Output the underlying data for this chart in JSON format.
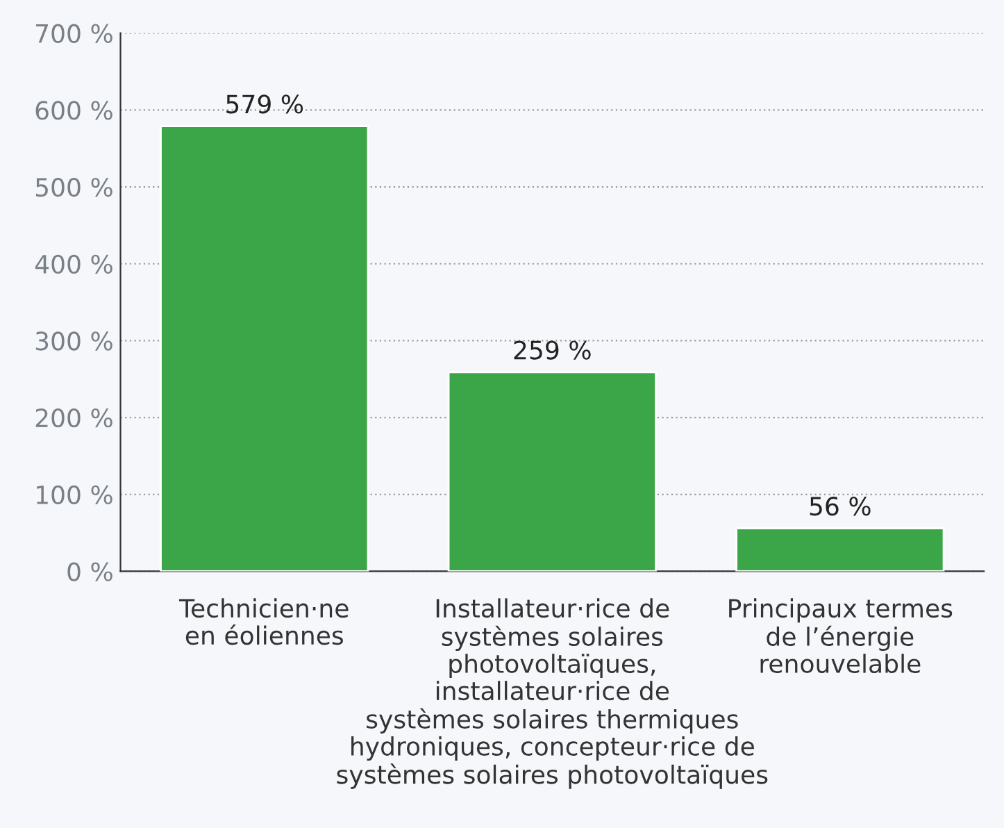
{
  "chart_data": {
    "type": "bar",
    "categories": [
      "Technicien·ne\nen éoliennes",
      "Installateur·rice de\nsystèmes solaires\nphotovoltaïques,\ninstallateur·rice de\nsystèmes solaires thermiques\nhydroniques, concepteur·rice de\nsystèmes solaires photovoltaïques",
      "Principaux termes\nde l’énergie\nrenouvelable"
    ],
    "values": [
      579,
      259,
      56
    ],
    "value_labels": [
      "579 %",
      "259 %",
      "56 %"
    ],
    "color": "#3aa647",
    "ylim": [
      0,
      700
    ],
    "yticks": [
      {
        "value": 0,
        "label": "0 %"
      },
      {
        "value": 100,
        "label": "100 %"
      },
      {
        "value": 200,
        "label": "200 %"
      },
      {
        "value": 300,
        "label": "300 %"
      },
      {
        "value": 400,
        "label": "400 %"
      },
      {
        "value": 500,
        "label": "500 %"
      },
      {
        "value": 600,
        "label": "600 %"
      },
      {
        "value": 700,
        "label": "700 %"
      }
    ],
    "grid": "y"
  }
}
